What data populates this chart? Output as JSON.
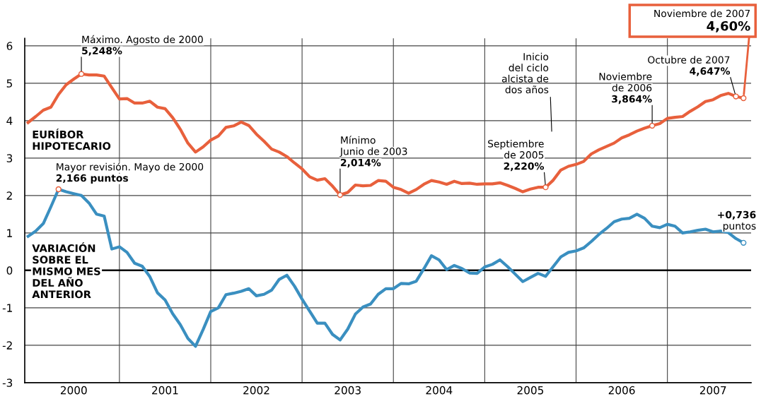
{
  "chart_data": {
    "type": "line",
    "x": [
      "2000-01",
      "2000-02",
      "2000-03",
      "2000-04",
      "2000-05",
      "2000-06",
      "2000-07",
      "2000-08",
      "2000-09",
      "2000-10",
      "2000-11",
      "2000-12",
      "2001-01",
      "2001-02",
      "2001-03",
      "2001-04",
      "2001-05",
      "2001-06",
      "2001-07",
      "2001-08",
      "2001-09",
      "2001-10",
      "2001-11",
      "2001-12",
      "2002-01",
      "2002-02",
      "2002-03",
      "2002-04",
      "2002-05",
      "2002-06",
      "2002-07",
      "2002-08",
      "2002-09",
      "2002-10",
      "2002-11",
      "2002-12",
      "2003-01",
      "2003-02",
      "2003-03",
      "2003-04",
      "2003-05",
      "2003-06",
      "2003-07",
      "2003-08",
      "2003-09",
      "2003-10",
      "2003-11",
      "2003-12",
      "2004-01",
      "2004-02",
      "2004-03",
      "2004-04",
      "2004-05",
      "2004-06",
      "2004-07",
      "2004-08",
      "2004-09",
      "2004-10",
      "2004-11",
      "2004-12",
      "2005-01",
      "2005-02",
      "2005-03",
      "2005-04",
      "2005-05",
      "2005-06",
      "2005-07",
      "2005-08",
      "2005-09",
      "2005-10",
      "2005-11",
      "2005-12",
      "2006-01",
      "2006-02",
      "2006-03",
      "2006-04",
      "2006-05",
      "2006-06",
      "2006-07",
      "2006-08",
      "2006-09",
      "2006-10",
      "2006-11",
      "2006-12",
      "2007-01",
      "2007-02",
      "2007-03",
      "2007-04",
      "2007-05",
      "2007-06",
      "2007-07",
      "2007-08",
      "2007-09",
      "2007-10",
      "2007-11"
    ],
    "series": [
      {
        "name": "EURÍBOR\nHIPOTECARIO",
        "color": "#e8603c",
        "values": [
          3.95,
          4.11,
          4.28,
          4.36,
          4.7,
          4.96,
          5.11,
          5.248,
          5.22,
          5.22,
          5.19,
          4.88,
          4.58,
          4.59,
          4.47,
          4.47,
          4.52,
          4.36,
          4.32,
          4.08,
          3.77,
          3.4,
          3.16,
          3.3,
          3.48,
          3.59,
          3.82,
          3.86,
          3.96,
          3.87,
          3.64,
          3.45,
          3.24,
          3.16,
          3.04,
          2.87,
          2.71,
          2.5,
          2.41,
          2.45,
          2.25,
          2.014,
          2.08,
          2.28,
          2.26,
          2.27,
          2.4,
          2.38,
          2.22,
          2.16,
          2.06,
          2.16,
          2.3,
          2.4,
          2.36,
          2.3,
          2.38,
          2.32,
          2.33,
          2.3,
          2.31,
          2.31,
          2.34,
          2.27,
          2.19,
          2.1,
          2.17,
          2.22,
          2.22,
          2.41,
          2.68,
          2.78,
          2.83,
          2.91,
          3.11,
          3.22,
          3.31,
          3.4,
          3.54,
          3.62,
          3.72,
          3.8,
          3.864,
          3.92,
          4.06,
          4.09,
          4.11,
          4.25,
          4.37,
          4.51,
          4.56,
          4.67,
          4.73,
          4.647,
          4.6
        ]
      },
      {
        "name": "VARIACIÓN\nSOBRE EL\nMISMO MES\nDEL AÑO\nANTERIOR",
        "color": "#3a8fc0",
        "values": [
          0.91,
          1.05,
          1.25,
          1.7,
          2.166,
          2.1,
          2.05,
          2.0,
          1.8,
          1.5,
          1.45,
          0.57,
          0.63,
          0.48,
          0.19,
          0.11,
          -0.17,
          -0.6,
          -0.79,
          -1.16,
          -1.45,
          -1.82,
          -2.03,
          -1.58,
          -1.1,
          -1.0,
          -0.65,
          -0.61,
          -0.56,
          -0.49,
          -0.68,
          -0.64,
          -0.53,
          -0.24,
          -0.13,
          -0.42,
          -0.77,
          -1.09,
          -1.41,
          -1.41,
          -1.71,
          -1.86,
          -1.57,
          -1.17,
          -0.98,
          -0.9,
          -0.64,
          -0.49,
          -0.49,
          -0.35,
          -0.36,
          -0.29,
          0.04,
          0.39,
          0.28,
          0.02,
          0.13,
          0.05,
          -0.07,
          -0.08,
          0.09,
          0.16,
          0.28,
          0.1,
          -0.1,
          -0.3,
          -0.19,
          -0.08,
          -0.16,
          0.1,
          0.36,
          0.48,
          0.52,
          0.6,
          0.77,
          0.96,
          1.12,
          1.3,
          1.37,
          1.39,
          1.5,
          1.39,
          1.18,
          1.14,
          1.23,
          1.18,
          1.0,
          1.03,
          1.07,
          1.1,
          1.03,
          1.05,
          1.01,
          0.85,
          0.736
        ]
      }
    ],
    "xlim": [
      "1999-12-18",
      "2007-12-01"
    ],
    "xticks": [
      {
        "value": "2000-07",
        "label": "2000"
      },
      {
        "value": "2001-01",
        "label": null
      },
      {
        "value": "2001-07",
        "label": "2001"
      },
      {
        "value": "2002-01",
        "label": null
      },
      {
        "value": "2002-07",
        "label": "2002"
      },
      {
        "value": "2003-01",
        "label": null
      },
      {
        "value": "2003-07",
        "label": "2003"
      },
      {
        "value": "2004-01",
        "label": null
      },
      {
        "value": "2004-07",
        "label": "2004"
      },
      {
        "value": "2005-01",
        "label": null
      },
      {
        "value": "2005-07",
        "label": "2005"
      },
      {
        "value": "2006-01",
        "label": null
      },
      {
        "value": "2006-07",
        "label": "2006"
      },
      {
        "value": "2007-01",
        "label": null
      },
      {
        "value": "2007-07",
        "label": "2007"
      }
    ],
    "ylim": [
      -3,
      6.2
    ],
    "yticks": [
      -3,
      -2,
      -1,
      0,
      1,
      2,
      3,
      4,
      5,
      6
    ],
    "grid": true,
    "legend": false,
    "ref_lines": [
      {
        "axis": "y",
        "value": 0,
        "color": "#000000"
      }
    ],
    "annotations": [
      {
        "text": "Máximo. Agosto de 2000\n5,248%",
        "x": "2000-08",
        "y": 5.248
      },
      {
        "text": "Mayor revisión. Mayo de 2000\n2,166 puntos",
        "x": "2000-05",
        "y": 2.166
      },
      {
        "text": "Mínimo\nJunio de 2003\n2,014%",
        "x": "2003-06",
        "y": 2.014
      },
      "Inicio\ndel ciclo\nalcista de\ndos años",
      {
        "text": "Septiembre\nde 2005\n2,220%",
        "x": "2005-09",
        "y": 2.22
      },
      {
        "text": "Noviembre\nde 2006\n3,864%",
        "x": "2006-11",
        "y": 3.864
      },
      {
        "text": "Octubre de 2007\n4,647%",
        "x": "2007-10",
        "y": 4.647
      },
      {
        "text": "Noviembre de 2007\n4,60%",
        "x": "2007-11",
        "y": 4.6
      },
      {
        "text": "+0,736\npuntos",
        "x": "2007-11",
        "y": 0.736
      }
    ]
  }
}
